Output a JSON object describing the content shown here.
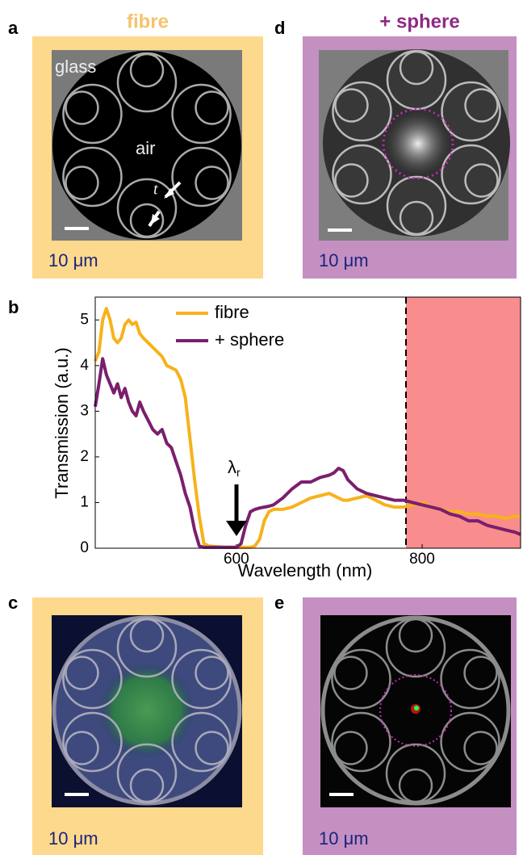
{
  "panels": {
    "a": {
      "label": "a",
      "title": "fibre",
      "glass": "glass",
      "air": "air",
      "t": "t",
      "scale": "10 μm"
    },
    "d": {
      "label": "d",
      "title": "+ sphere",
      "scale": "10 μm"
    },
    "b": {
      "label": "b"
    },
    "c": {
      "label": "c",
      "scale": "10 μm"
    },
    "e": {
      "label": "e",
      "scale": "10 μm"
    }
  },
  "chart_data": {
    "type": "line",
    "xlabel": "Wavelength (nm)",
    "ylabel": "Transmission (a.u.)",
    "annotation": {
      "text": "λ",
      "subscript": "r"
    },
    "xlim": [
      448,
      906
    ],
    "ylim": [
      0,
      5.5
    ],
    "xticks": [
      600,
      800
    ],
    "yticks": [
      0,
      1,
      2,
      3,
      4,
      5
    ],
    "grid": false,
    "legend": "top",
    "x": [
      448,
      452,
      456,
      460,
      464,
      468,
      472,
      476,
      480,
      484,
      488,
      492,
      496,
      500,
      505,
      510,
      515,
      520,
      525,
      530,
      535,
      540,
      545,
      550,
      555,
      560,
      565,
      570,
      580,
      590,
      600,
      605,
      610,
      615,
      620,
      625,
      630,
      635,
      640,
      650,
      660,
      670,
      680,
      690,
      700,
      705,
      710,
      715,
      720,
      730,
      740,
      750,
      760,
      770,
      780,
      790,
      800,
      810,
      820,
      830,
      840,
      850,
      860,
      870,
      880,
      890,
      900,
      906
    ],
    "series": [
      {
        "name": "fibre",
        "color": "#f7b21b",
        "values": [
          4.1,
          4.3,
          5.0,
          5.25,
          5.0,
          4.6,
          4.5,
          4.6,
          4.9,
          5.0,
          4.9,
          4.95,
          4.7,
          4.6,
          4.5,
          4.4,
          4.3,
          4.2,
          4.0,
          3.95,
          3.9,
          3.7,
          3.3,
          2.4,
          1.5,
          0.7,
          0.1,
          0.05,
          0.03,
          0.02,
          0.02,
          0.02,
          0.02,
          0.02,
          0.05,
          0.2,
          0.6,
          0.8,
          0.85,
          0.85,
          0.9,
          1.0,
          1.1,
          1.15,
          1.2,
          1.15,
          1.1,
          1.05,
          1.05,
          1.1,
          1.15,
          1.05,
          0.95,
          0.9,
          0.9,
          0.95,
          1.0,
          0.9,
          0.85,
          0.8,
          0.8,
          0.75,
          0.75,
          0.7,
          0.7,
          0.65,
          0.7,
          0.7
        ]
      },
      {
        "name": "+ sphere",
        "color": "#7a1f6e",
        "values": [
          3.1,
          3.6,
          4.15,
          3.8,
          3.6,
          3.4,
          3.6,
          3.3,
          3.5,
          3.2,
          3.0,
          2.9,
          3.2,
          3.0,
          2.8,
          2.6,
          2.5,
          2.6,
          2.3,
          2.2,
          1.9,
          1.6,
          1.2,
          0.9,
          0.4,
          0.05,
          0.02,
          0.02,
          0.02,
          0.02,
          0.02,
          0.1,
          0.5,
          0.8,
          0.85,
          0.88,
          0.9,
          0.92,
          0.95,
          1.1,
          1.3,
          1.45,
          1.45,
          1.55,
          1.6,
          1.65,
          1.75,
          1.7,
          1.5,
          1.3,
          1.2,
          1.15,
          1.1,
          1.05,
          1.05,
          1.0,
          0.95,
          0.9,
          0.85,
          0.75,
          0.7,
          0.6,
          0.6,
          0.5,
          0.45,
          0.4,
          0.35,
          0.3
        ]
      }
    ]
  }
}
